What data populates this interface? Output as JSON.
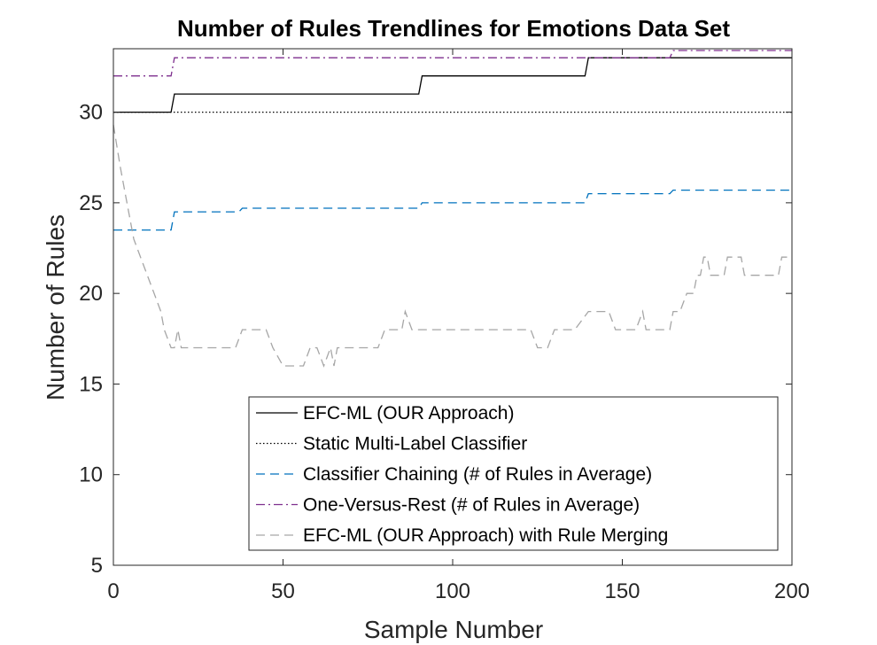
{
  "chart_data": {
    "type": "line",
    "title": "Number of Rules Trendlines for Emotions Data Set",
    "xlabel": "Sample Number",
    "ylabel": "Number of Rules",
    "xlim": [
      0,
      200
    ],
    "ylim": [
      5,
      33.5
    ],
    "xticks": [
      0,
      50,
      100,
      150,
      200
    ],
    "yticks": [
      5,
      10,
      15,
      20,
      25,
      30
    ],
    "grid": false,
    "legend_position": "bottom-right",
    "series": [
      {
        "name": "EFC-ML (OUR Approach)",
        "color": "#000000",
        "dash": "solid",
        "x": [
          0,
          17,
          18,
          90,
          91,
          139,
          140,
          200
        ],
        "y": [
          30,
          30,
          31,
          31,
          32,
          32,
          33,
          33
        ]
      },
      {
        "name": "Static Multi-Label Classifier",
        "color": "#000000",
        "dash": "dotted",
        "x": [
          0,
          200
        ],
        "y": [
          30,
          30
        ]
      },
      {
        "name": "Classifier Chaining (# of Rules in Average)",
        "color": "#0072BD",
        "dash": "dashed",
        "x": [
          0,
          17,
          18,
          37,
          38,
          90,
          91,
          139,
          140,
          164,
          165,
          200
        ],
        "y": [
          23.5,
          23.5,
          24.5,
          24.5,
          24.7,
          24.7,
          25.0,
          25.0,
          25.5,
          25.5,
          25.7,
          25.7
        ]
      },
      {
        "name": "One-Versus-Rest (# of Rules in Average)",
        "color": "#7E2F8E",
        "dash": "dashdot",
        "x": [
          0,
          17,
          18,
          164,
          165,
          200
        ],
        "y": [
          32,
          32,
          33,
          33,
          33.4,
          33.4
        ]
      },
      {
        "name": "EFC-ML (OUR Approach) with Rule Merging",
        "color": "#A6A6A6",
        "dash": "dashed",
        "x": [
          0,
          2,
          4,
          6,
          8,
          10,
          12,
          14,
          15,
          17,
          18,
          19,
          20,
          22,
          30,
          36,
          38,
          45,
          47,
          50,
          56,
          58,
          60,
          62,
          64,
          65,
          66,
          67,
          69,
          78,
          80,
          84,
          85,
          86,
          88,
          90,
          100,
          123,
          125,
          128,
          130,
          136,
          140,
          146,
          148,
          154,
          156,
          157,
          160,
          164,
          165,
          167,
          169,
          170,
          171,
          172,
          173,
          174,
          175,
          176,
          180,
          181,
          184,
          185,
          186,
          188,
          194,
          196,
          197,
          200
        ],
        "y": [
          29.3,
          27,
          25,
          23,
          22,
          21,
          20,
          19,
          18,
          17,
          17,
          18,
          17,
          17,
          17,
          17,
          18,
          18,
          17,
          16,
          16,
          17,
          17,
          16,
          17,
          16,
          17,
          17,
          17,
          17,
          18,
          18,
          18,
          19,
          18,
          18,
          18,
          18,
          17,
          17,
          18,
          18,
          19,
          19,
          18,
          18,
          19,
          18,
          18,
          18,
          19,
          19,
          20,
          20,
          20,
          21,
          21,
          22,
          22,
          21,
          21,
          22,
          22,
          22,
          21,
          21,
          21,
          21,
          22,
          22
        ]
      }
    ]
  }
}
